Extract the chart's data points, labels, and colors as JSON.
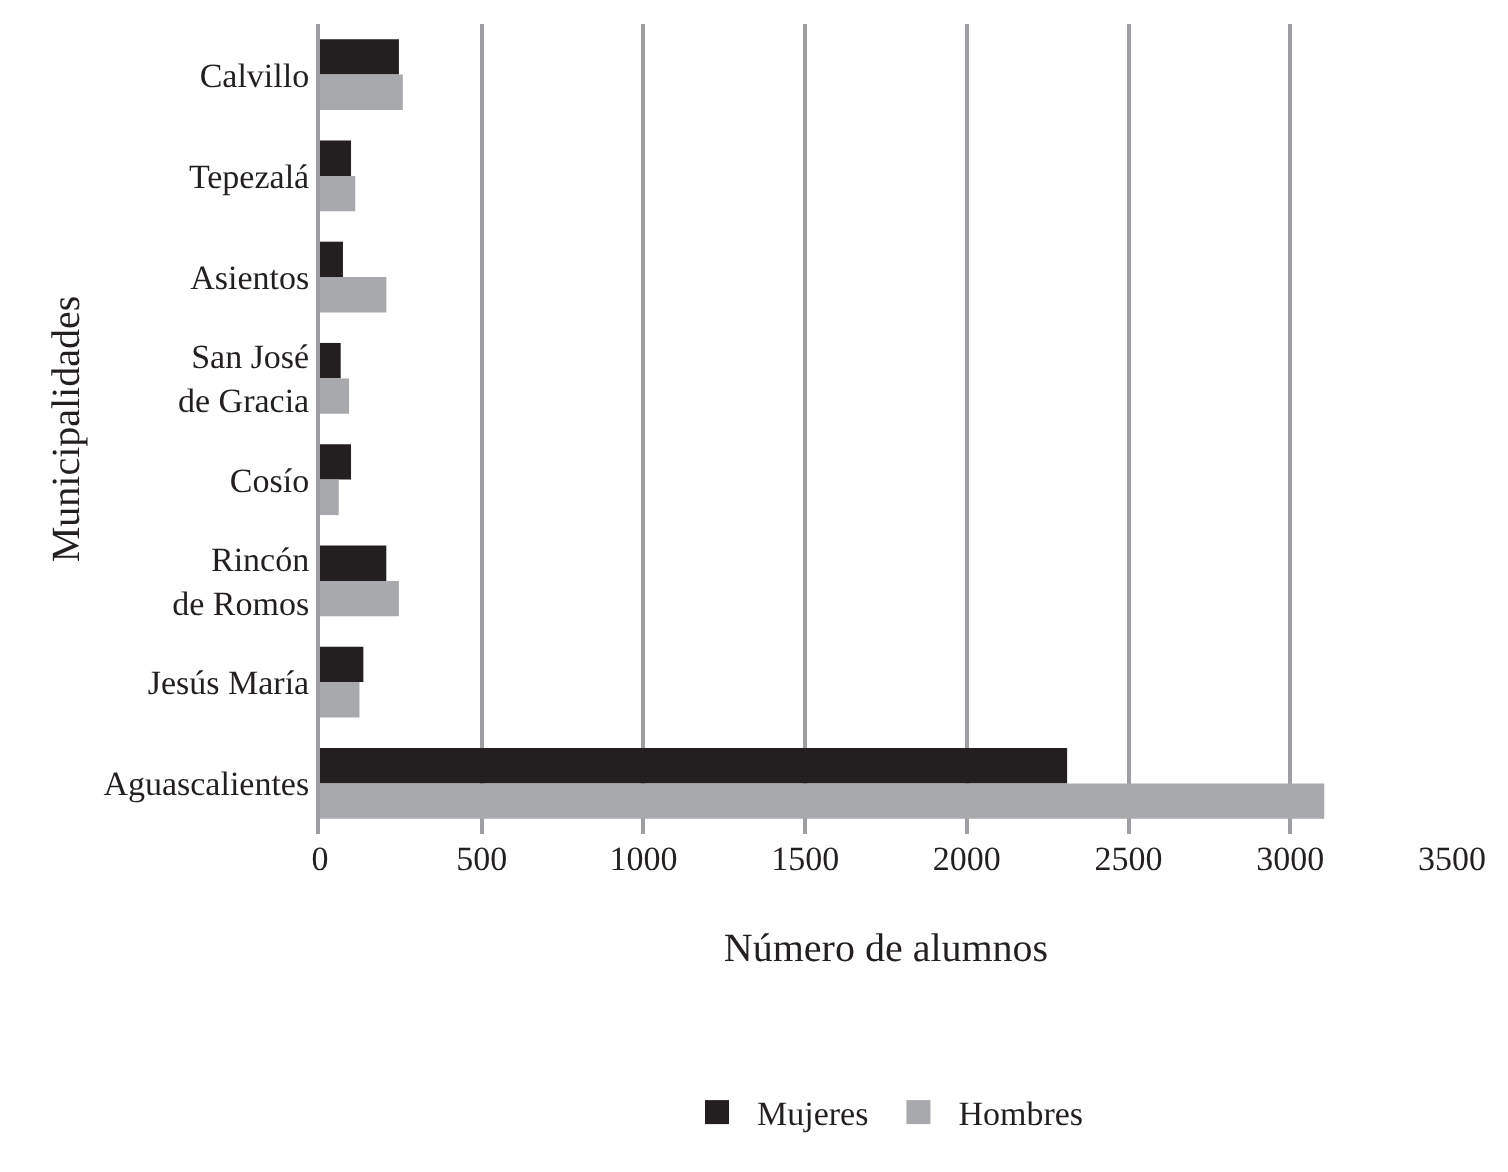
{
  "chart_data": {
    "type": "bar",
    "orientation": "horizontal",
    "xlabel": "Número de alumnos",
    "ylabel": "Municipalidades",
    "categories": [
      "Calvillo",
      "Tepezalá",
      "Asientos",
      "San José de Gracia",
      "Cosío",
      "Rincón de Romos",
      "Jesús María",
      "Aguascalientes"
    ],
    "series": [
      {
        "name": "Mujeres",
        "color": "#231f20",
        "values": [
          244,
          96,
          71,
          64,
          96,
          205,
          134,
          2310
        ]
      },
      {
        "name": "Hombres",
        "color": "#a7a9ac",
        "values": [
          256,
          109,
          205,
          90,
          58,
          244,
          122,
          3105
        ]
      }
    ],
    "xlim": [
      0,
      3500
    ],
    "xticks": [
      0,
      500,
      1000,
      1500,
      2000,
      2500,
      3000,
      3500
    ],
    "grid": "x",
    "legend": "bottom"
  }
}
